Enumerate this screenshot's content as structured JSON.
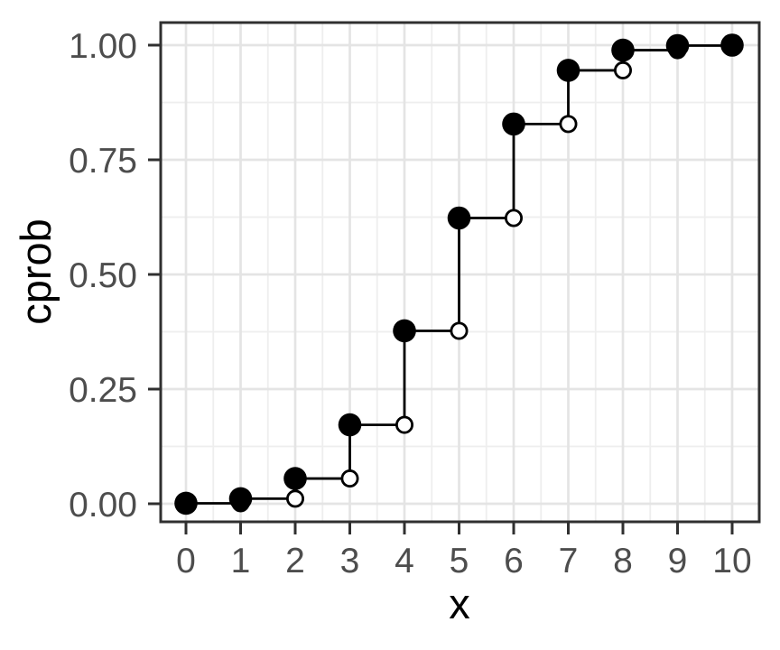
{
  "figure": {
    "background_color": "#FFFFFF"
  },
  "chart_data": {
    "type": "step",
    "title": "",
    "xlabel": "x",
    "ylabel": "cprob",
    "x": [
      0,
      1,
      2,
      3,
      4,
      5,
      6,
      7,
      8,
      9,
      10
    ],
    "series": [
      {
        "name": "cprob",
        "values": [
          0.001,
          0.011,
          0.055,
          0.172,
          0.377,
          0.623,
          0.828,
          0.945,
          0.989,
          0.999,
          1.0
        ]
      }
    ],
    "step_style": {
      "closed_point": "filled circle at (x, F(x))",
      "open_point": "open circle at (x+1, F(x))"
    },
    "x_ticks": [
      0,
      1,
      2,
      3,
      4,
      5,
      6,
      7,
      8,
      9,
      10
    ],
    "x_tick_labels": [
      "0",
      "1",
      "2",
      "3",
      "4",
      "5",
      "6",
      "7",
      "8",
      "9",
      "10"
    ],
    "y_ticks": [
      0,
      0.25,
      0.5,
      0.75,
      1.0
    ],
    "y_tick_labels": [
      "0.00",
      "0.25",
      "0.50",
      "0.75",
      "1.00"
    ],
    "x_minor_ticks": [
      0.5,
      1.5,
      2.5,
      3.5,
      4.5,
      5.5,
      6.5,
      7.5,
      8.5,
      9.5
    ],
    "y_minor_ticks": [
      0.125,
      0.375,
      0.625,
      0.875
    ],
    "xlim": [
      -0.463,
      10.496
    ],
    "ylim": [
      -0.0394,
      1.0492
    ],
    "grid": "major and minor, light gray on white panel",
    "legend": "none",
    "style": {
      "line_color": "#000000",
      "point_fill": "#000000",
      "open_point_fill": "#FFFFFF",
      "grid_major_color": "#E4E4E4",
      "grid_minor_color": "#EEEEEE",
      "panel_border_color": "#303030",
      "tick_color": "#303030",
      "tick_label_color": "#4D4D4D",
      "axis_title_color": "#000000",
      "panel_background": "#FFFFFF"
    }
  }
}
